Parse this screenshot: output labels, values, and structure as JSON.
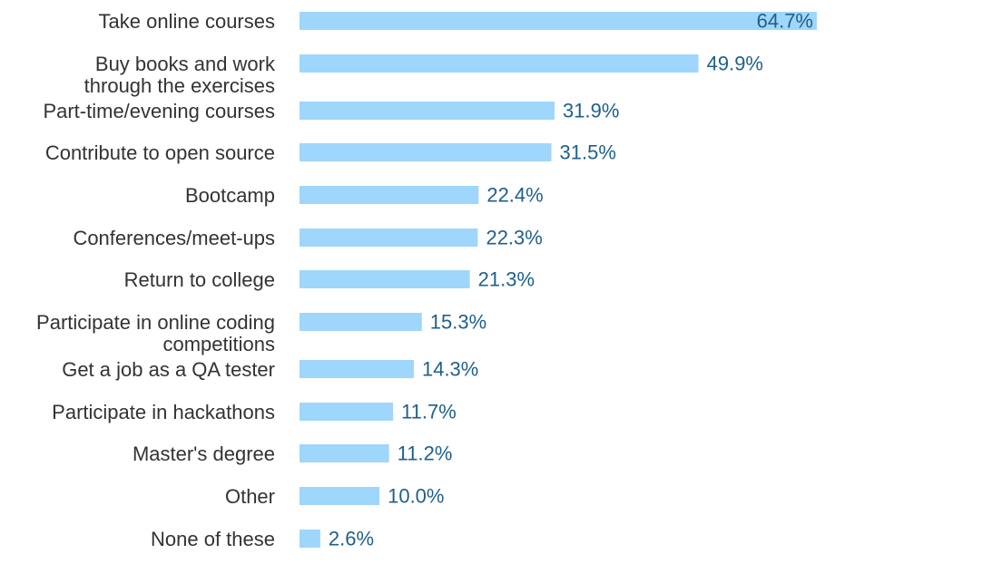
{
  "chart_data": {
    "type": "bar",
    "orientation": "horizontal",
    "categories": [
      [
        "Take online courses"
      ],
      [
        "Buy books and work",
        "through the exercises"
      ],
      [
        "Part-time/evening courses"
      ],
      [
        "Contribute to open source"
      ],
      [
        "Bootcamp"
      ],
      [
        "Conferences/meet-ups"
      ],
      [
        "Return to college"
      ],
      [
        "Participate in online coding",
        "competitions"
      ],
      [
        "Get a job as a QA tester"
      ],
      [
        "Participate in hackathons"
      ],
      [
        "Master's degree"
      ],
      [
        "Other"
      ],
      [
        "None of these"
      ]
    ],
    "values": [
      64.7,
      49.9,
      31.9,
      31.5,
      22.4,
      22.3,
      21.3,
      15.3,
      14.3,
      11.7,
      11.2,
      10.0,
      2.6
    ],
    "value_labels": [
      "64.7%",
      "49.9%",
      "31.9%",
      "31.5%",
      "22.4%",
      "22.3%",
      "21.3%",
      "15.3%",
      "14.3%",
      "11.7%",
      "11.2%",
      "10.0%",
      "2.6%"
    ],
    "xlim": [
      0,
      64.7
    ],
    "grid": false,
    "legend": "none",
    "colors": {
      "bar": "#9fd6fb",
      "value_text": "#1f5f8b",
      "category_text": "#333333"
    }
  }
}
